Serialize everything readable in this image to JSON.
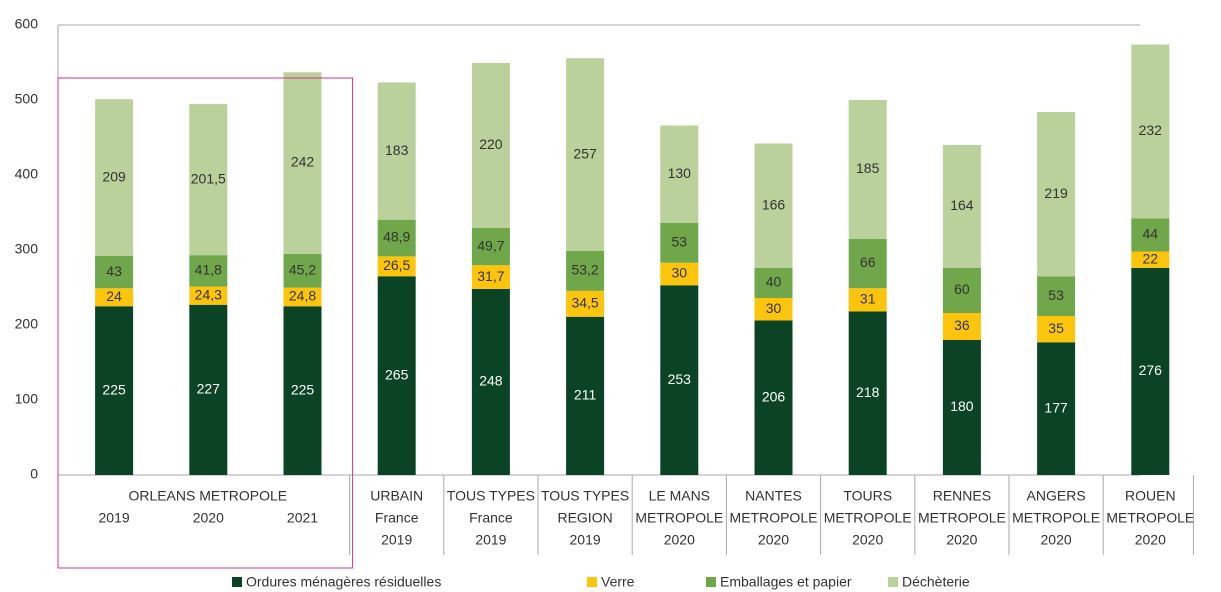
{
  "chart_data": {
    "type": "bar",
    "stacked": true,
    "group_label": "ORLEANS METROPOLE",
    "categories": [
      [
        "2019"
      ],
      [
        "2020"
      ],
      [
        "2021"
      ],
      [
        "URBAIN",
        "France",
        "2019"
      ],
      [
        "TOUS TYPES",
        "France",
        "2019"
      ],
      [
        "TOUS TYPES",
        "REGION",
        "2019"
      ],
      [
        "LE MANS",
        "METROPOLE",
        "2020"
      ],
      [
        "NANTES",
        "METROPOLE",
        "2020"
      ],
      [
        "TOURS",
        "METROPOLE",
        "2020"
      ],
      [
        "RENNES",
        "METROPOLE",
        "2020"
      ],
      [
        "ANGERS",
        "METROPOLE",
        "2020"
      ],
      [
        "ROUEN",
        "METROPOLE",
        "2020"
      ]
    ],
    "series": [
      {
        "name": "Ordures ménagères résiduelles",
        "color": "#0b4424",
        "label_color": "#ffffff",
        "values": [
          225,
          227,
          225,
          265,
          248,
          211,
          253,
          206,
          218,
          180,
          177,
          276
        ],
        "value_labels": [
          "225",
          "227",
          "225",
          "265",
          "248",
          "211",
          "253",
          "206",
          "218",
          "180",
          "177",
          "276"
        ]
      },
      {
        "name": "Verre",
        "color": "#fcc50c",
        "label_color": "#333333",
        "values": [
          24,
          24.3,
          24.8,
          26.5,
          31.7,
          34.5,
          30,
          30,
          31,
          36,
          35,
          22
        ],
        "value_labels": [
          "24",
          "24,3",
          "24,8",
          "26,5",
          "31,7",
          "34,5",
          "30",
          "30",
          "31",
          "36",
          "35",
          "22"
        ]
      },
      {
        "name": "Emballages et papier",
        "color": "#6fa74a",
        "label_color": "#333333",
        "values": [
          43,
          41.8,
          45.2,
          48.9,
          49.7,
          53.2,
          53,
          40,
          66,
          60,
          53,
          44
        ],
        "value_labels": [
          "43",
          "41,8",
          "45,2",
          "48,9",
          "49,7",
          "53,2",
          "53",
          "40",
          "66",
          "60",
          "53",
          "44"
        ]
      },
      {
        "name": "Déchèterie",
        "color": "#bad19b",
        "label_color": "#333333",
        "values": [
          209,
          201.5,
          242,
          183,
          220,
          257,
          130,
          166,
          185,
          164,
          219,
          232
        ],
        "value_labels": [
          "209",
          "201,5",
          "242",
          "183",
          "220",
          "257",
          "130",
          "166",
          "185",
          "164",
          "219",
          "232"
        ]
      }
    ],
    "ylim": [
      0,
      600
    ],
    "yticks": [
      0,
      100,
      200,
      300,
      400,
      500,
      600
    ],
    "grid": false
  }
}
